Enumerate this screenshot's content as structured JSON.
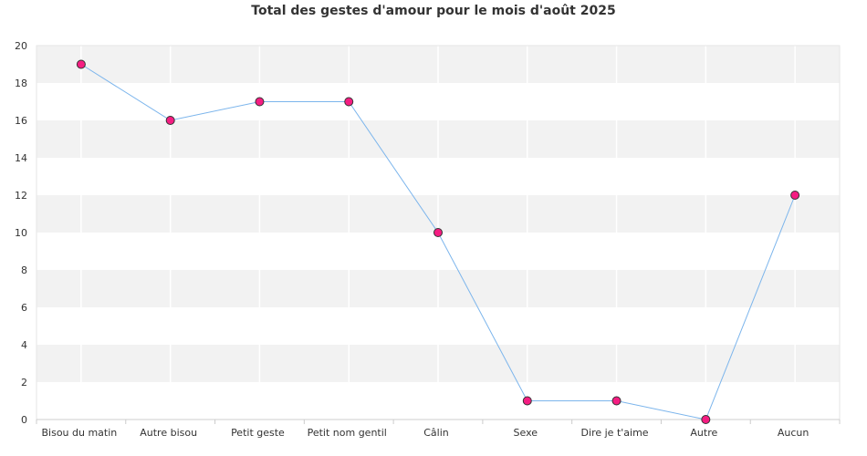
{
  "chart_data": {
    "type": "line",
    "title": "Total des gestes d'amour pour le mois d'août 2025",
    "xlabel": "",
    "ylabel": "",
    "categories": [
      "Bisou du matin",
      "Autre bisou",
      "Petit geste",
      "Petit nom gentil",
      "Câlin",
      "Sexe",
      "Dire je t'aime",
      "Autre",
      "Aucun"
    ],
    "series": [
      {
        "values": [
          19,
          16,
          17,
          17,
          10,
          1,
          1,
          0,
          12
        ]
      }
    ],
    "ylim": [
      0,
      20
    ],
    "yticks": [
      "0",
      "2",
      "4",
      "6",
      "8",
      "10",
      "12",
      "14",
      "16",
      "18",
      "20"
    ],
    "grid": "alternating horizontal bands, vertical gridlines",
    "legend": "none",
    "colors": {
      "line": "#7cb5ec",
      "marker_fill": "#f51d82",
      "marker_stroke": "#333333",
      "band_dark": "#f2f2f2",
      "band_light": "#ffffff",
      "axis": "#cccccc",
      "text": "#333333"
    }
  }
}
